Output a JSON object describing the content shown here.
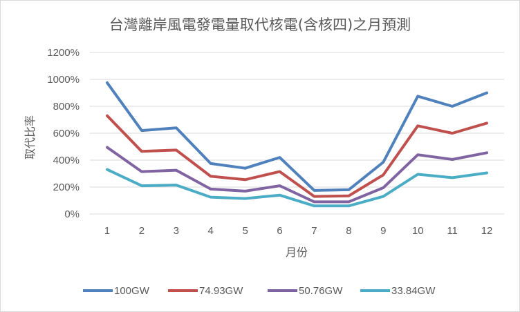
{
  "chart_data": {
    "type": "line",
    "title": "台灣離岸風電發電量取代核電(含核四)之月預測",
    "xlabel": "月份",
    "ylabel": "取代比率",
    "categories": [
      "1",
      "2",
      "3",
      "4",
      "5",
      "6",
      "7",
      "8",
      "9",
      "10",
      "11",
      "12"
    ],
    "ylim": [
      0,
      1200
    ],
    "yticks": [
      0,
      200,
      400,
      600,
      800,
      1000,
      1200
    ],
    "ytick_labels": [
      "0%",
      "200%",
      "400%",
      "600%",
      "800%",
      "1000%",
      "1200%"
    ],
    "grid": true,
    "legend_position": "bottom",
    "series": [
      {
        "name": "100GW",
        "color": "#4f81bd",
        "values": [
          975,
          620,
          640,
          375,
          340,
          420,
          175,
          180,
          385,
          875,
          800,
          900
        ]
      },
      {
        "name": "74.93GW",
        "color": "#c0504d",
        "values": [
          730,
          465,
          475,
          280,
          255,
          315,
          130,
          135,
          290,
          655,
          600,
          675
        ]
      },
      {
        "name": "50.76GW",
        "color": "#8064a2",
        "values": [
          495,
          315,
          325,
          185,
          170,
          210,
          90,
          90,
          195,
          440,
          405,
          455
        ]
      },
      {
        "name": "33.84GW",
        "color": "#4bacc6",
        "values": [
          330,
          210,
          215,
          125,
          115,
          140,
          60,
          60,
          130,
          295,
          270,
          305
        ]
      }
    ]
  }
}
